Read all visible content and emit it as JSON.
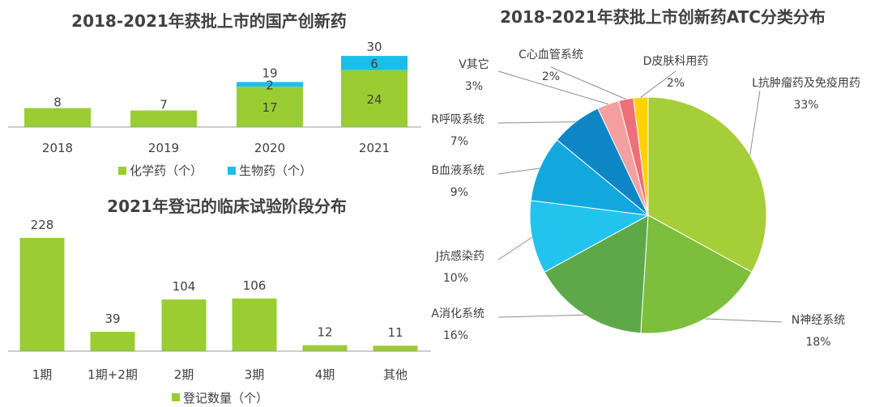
{
  "chart_data": [
    {
      "type": "bar",
      "stacked": true,
      "title": "2018-2021年获批上市的国产创新药",
      "categories": [
        "2018",
        "2019",
        "2020",
        "2021"
      ],
      "series": [
        {
          "name": "化学药（个）",
          "values": [
            8,
            7,
            17,
            24
          ],
          "color": "#9ACD32"
        },
        {
          "name": "生物药（个）",
          "values": [
            0,
            0,
            2,
            6
          ],
          "color": "#1BBEEB"
        }
      ],
      "totals": [
        "",
        "",
        "19",
        "30"
      ],
      "legend": [
        "化学药（个）",
        "生物药（个）"
      ],
      "legend_position": "bottom",
      "ylim": [
        0,
        30
      ]
    },
    {
      "type": "bar",
      "title": "2021年登记的临床试验阶段分布",
      "categories": [
        "1期",
        "1期+2期",
        "2期",
        "3期",
        "4期",
        "其他"
      ],
      "series": [
        {
          "name": "登记数量（个）",
          "values": [
            228,
            39,
            104,
            106,
            12,
            11
          ],
          "color": "#9ACD32"
        }
      ],
      "legend": [
        "登记数量（个）"
      ],
      "legend_position": "bottom",
      "ylim": [
        0,
        228
      ]
    },
    {
      "type": "pie",
      "title": "2018-2021年获批上市创新药ATC分类分布",
      "slices": [
        {
          "label": "L抗肿瘤药及免疫用药",
          "value": 33,
          "pct": "33%",
          "color": "#A6CE39"
        },
        {
          "label": "N神经系统",
          "value": 18,
          "pct": "18%",
          "color": "#7DBE3C"
        },
        {
          "label": "A消化系统",
          "value": 16,
          "pct": "16%",
          "color": "#5FA84A"
        },
        {
          "label": "J抗感染药",
          "value": 10,
          "pct": "10%",
          "color": "#22C4EE"
        },
        {
          "label": "B血液系统",
          "value": 9,
          "pct": "9%",
          "color": "#12A8DE"
        },
        {
          "label": "R呼吸系统",
          "value": 7,
          "pct": "7%",
          "color": "#0E86C6"
        },
        {
          "label": "V其它",
          "value": 3,
          "pct": "3%",
          "color": "#F4A0A0"
        },
        {
          "label": "C心血管系统",
          "value": 2,
          "pct": "2%",
          "color": "#EE6F7A"
        },
        {
          "label": "D皮肤科用药",
          "value": 2,
          "pct": "2%",
          "color": "#FFD200"
        }
      ]
    }
  ]
}
